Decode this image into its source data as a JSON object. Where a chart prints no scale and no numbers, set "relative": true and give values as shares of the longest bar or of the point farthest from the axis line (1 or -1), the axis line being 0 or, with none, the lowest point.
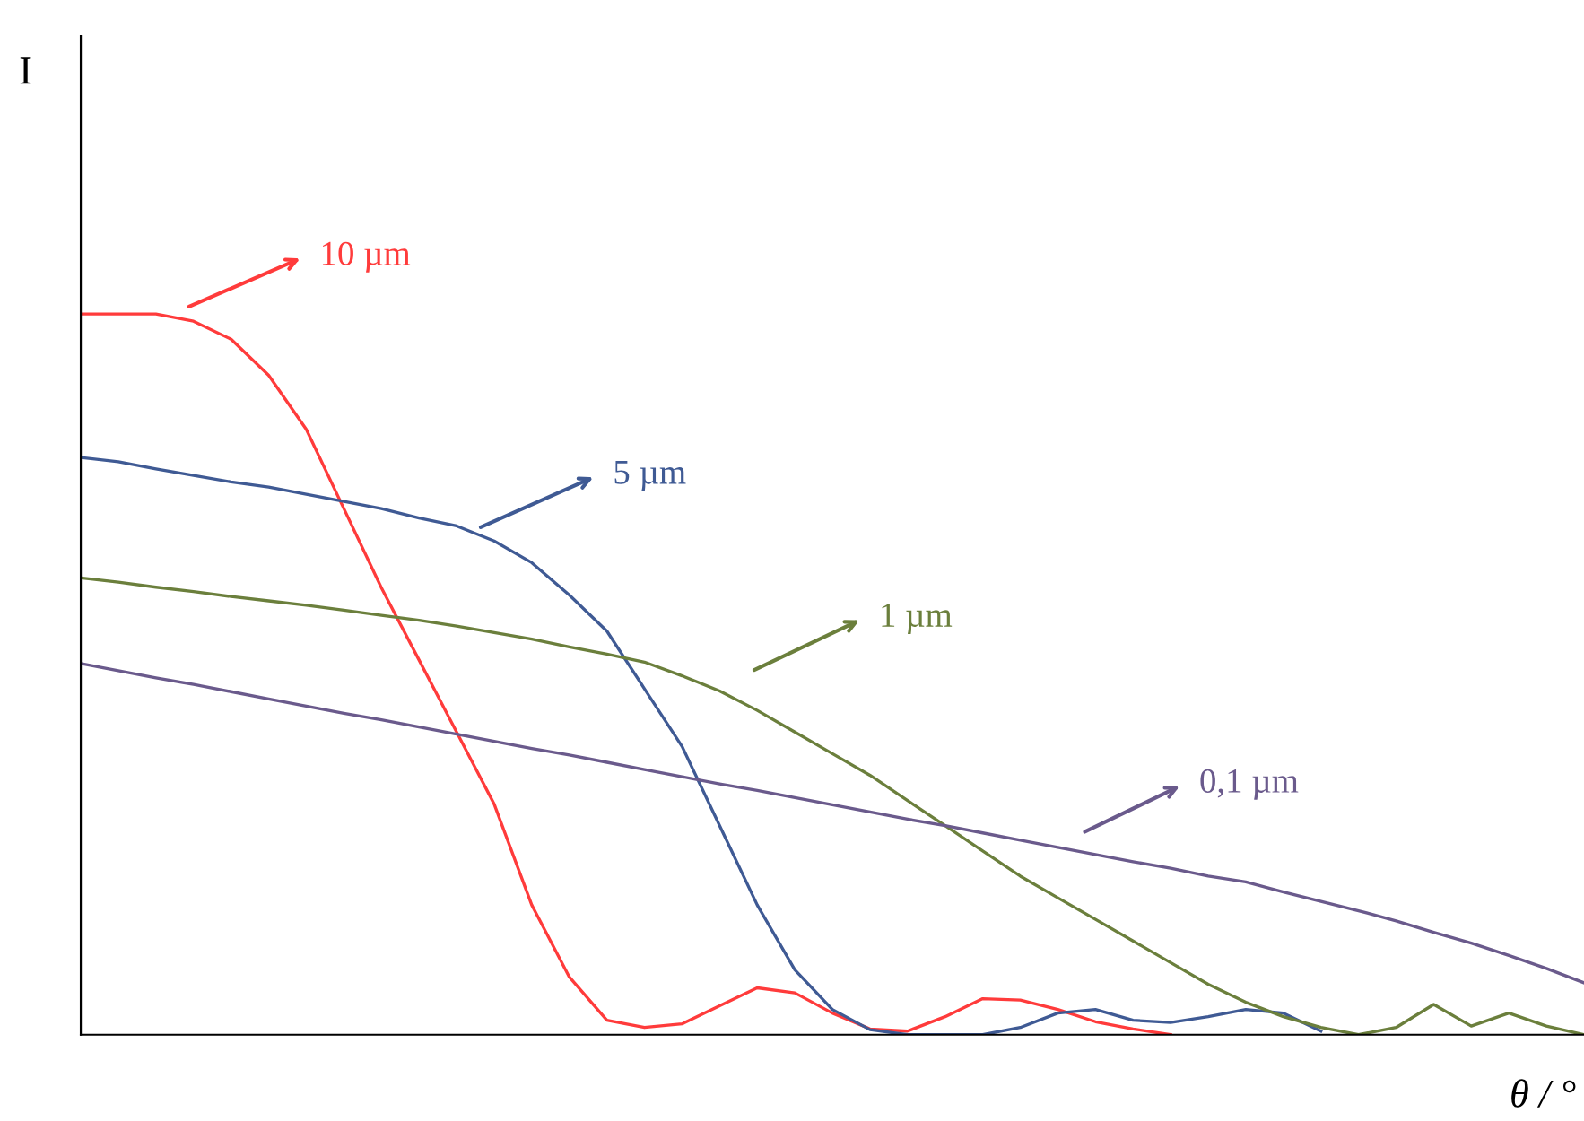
{
  "chart_data": {
    "type": "line",
    "relative": true,
    "annotations": [
      "I"
    ],
    "legend": "top",
    "xlabel": "θ / °",
    "line_style": "solid",
    "categories": [
      null,
      null,
      null,
      null,
      null,
      null,
      null,
      null,
      null,
      null,
      null,
      null,
      null,
      null,
      null,
      null,
      null,
      null,
      null,
      null,
      null,
      null,
      null,
      null,
      null,
      null,
      null,
      null,
      null,
      null,
      null,
      null,
      null,
      null,
      null,
      null,
      null,
      null,
      null,
      null,
      null
    ],
    "series": [
      {
        "name": "10 µm",
        "color": "#ff3b3b",
        "values": [
          1,
          1,
          1,
          0.99,
          0.965,
          0.915,
          0.84,
          0.73,
          0.62,
          0.52,
          0.42,
          0.32,
          0.18,
          0.08,
          0.02,
          0.01,
          0.015,
          0.04,
          0.065,
          0.058,
          0.03,
          0.008,
          0.005,
          0.025,
          0.05,
          0.048,
          0.035,
          0.018,
          0.008,
          0,
          null,
          null,
          null,
          null,
          null,
          null,
          null,
          null,
          null,
          null,
          null
        ]
      },
      {
        "name": "5 µm",
        "color": "#3f5a94",
        "values": [
          0.801,
          0.795,
          0.785,
          0.776,
          0.767,
          0.76,
          0.75,
          0.74,
          0.73,
          0.717,
          0.706,
          0.685,
          0.655,
          0.61,
          0.56,
          0.48,
          0.4,
          0.29,
          0.18,
          0.09,
          0.035,
          0.007,
          0,
          0,
          0,
          0.01,
          0.03,
          0.035,
          0.02,
          0.017,
          0.025,
          0.035,
          0.03,
          0.005,
          null,
          null,
          null,
          null,
          null,
          null,
          null
        ]
      },
      {
        "name": "1 µm",
        "color": "#6b7f3c",
        "values": [
          0.634,
          0.628,
          0.621,
          0.615,
          0.608,
          0.602,
          0.596,
          0.589,
          0.582,
          0.575,
          0.567,
          0.558,
          0.549,
          0.538,
          0.528,
          0.517,
          0.498,
          0.477,
          0.45,
          0.42,
          0.39,
          0.36,
          0.325,
          0.29,
          0.255,
          0.22,
          0.19,
          0.16,
          0.13,
          0.1,
          0.07,
          0.045,
          0.025,
          0.01,
          0,
          0.01,
          0.042,
          0.012,
          0.03,
          0.012,
          0
        ]
      },
      {
        "name": "0,1 µm",
        "color": "#6a5a8c",
        "values": [
          0.515,
          0.505,
          0.495,
          0.486,
          0.476,
          0.466,
          0.456,
          0.446,
          0.437,
          0.427,
          0.417,
          0.407,
          0.397,
          0.388,
          0.378,
          0.368,
          0.358,
          0.348,
          0.339,
          0.329,
          0.319,
          0.309,
          0.299,
          0.29,
          0.28,
          0.27,
          0.26,
          0.25,
          0.24,
          0.231,
          0.22,
          0.212,
          0.198,
          0.185,
          0.172,
          0.158,
          0.142,
          0.127,
          0.11,
          0.092,
          0.072
        ]
      }
    ]
  }
}
